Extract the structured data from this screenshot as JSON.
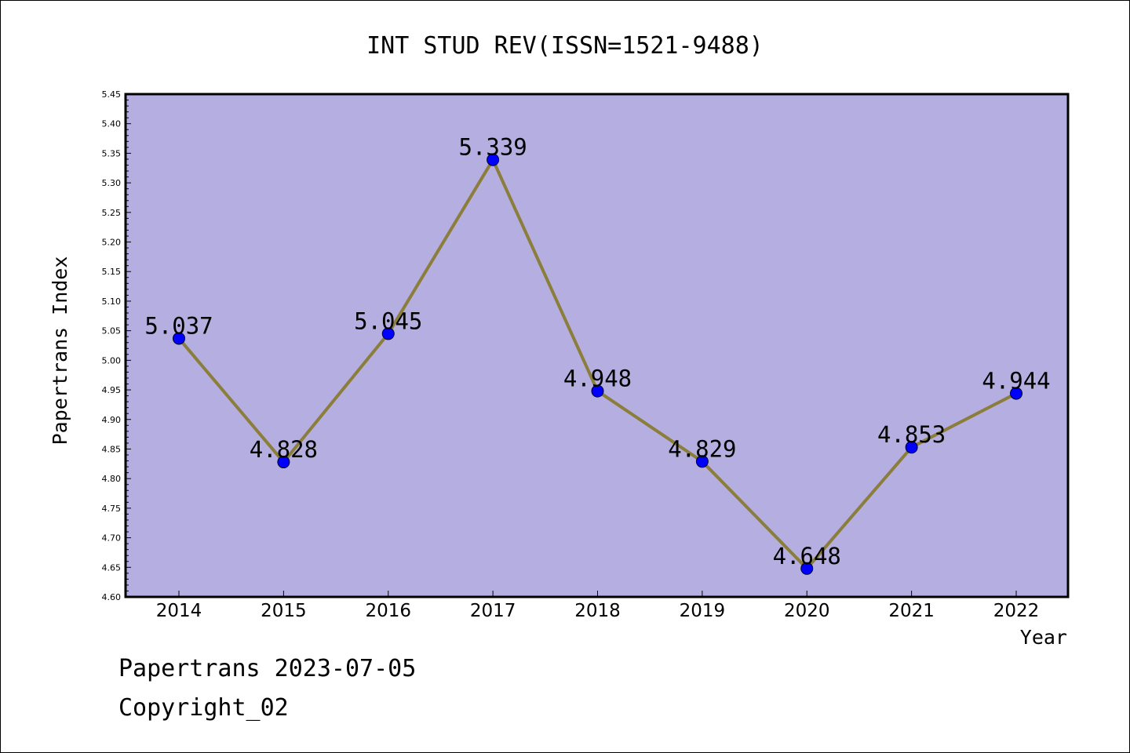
{
  "chart_data": {
    "type": "line",
    "title": "INT STUD REV(ISSN=1521-9488)",
    "xlabel": "Year",
    "ylabel": "Papertrans Index",
    "categories": [
      "2014",
      "2015",
      "2016",
      "2017",
      "2018",
      "2019",
      "2020",
      "2021",
      "2022"
    ],
    "values": [
      5.037,
      4.828,
      5.045,
      5.339,
      4.948,
      4.829,
      4.648,
      4.853,
      4.944
    ],
    "data_labels": [
      "5.037",
      "4.828",
      "5.045",
      "5.339",
      "4.948",
      "4.829",
      "4.648",
      "4.853",
      "4.944"
    ],
    "ylim": [
      4.6,
      5.45
    ],
    "yticks": [
      "4.60",
      "4.65",
      "4.70",
      "4.75",
      "4.80",
      "4.85",
      "4.90",
      "4.95",
      "5.00",
      "5.05",
      "5.10",
      "5.15",
      "5.20",
      "5.25",
      "5.30",
      "5.35",
      "5.40",
      "5.45"
    ],
    "grid": false,
    "colors": {
      "plot_background": "#b4aee1",
      "line": "#8b7d3a",
      "marker": "#0000ff"
    }
  },
  "footer": {
    "date_line": "Papertrans 2023-07-05",
    "copyright": "Copyright_02"
  }
}
